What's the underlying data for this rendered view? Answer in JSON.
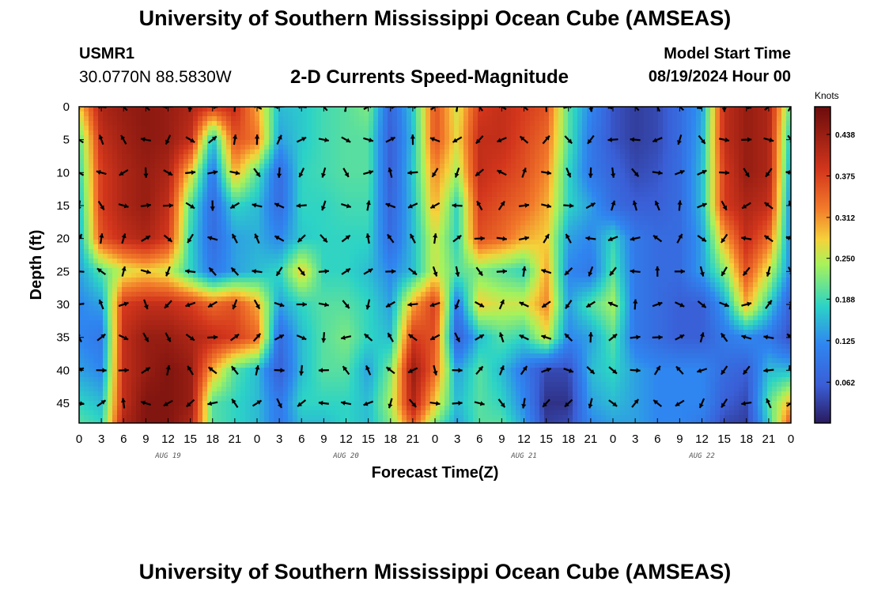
{
  "header": {
    "title": "University of Southern Mississippi Ocean Cube (AMSEAS)",
    "station_id": "USMR1",
    "coords": "30.0770N  88.5830W",
    "plot_title": "2-D Currents Speed-Magnitude",
    "model_start_label": "Model Start Time",
    "model_start_value": "08/19/2024 Hour 00"
  },
  "footer": {
    "title": "University of Southern Mississippi Ocean Cube (AMSEAS)"
  },
  "chart_data": {
    "type": "heatmap",
    "title": "2-D Currents Speed-Magnitude",
    "xlabel": "Forecast Time(Z)",
    "ylabel": "Depth (ft)",
    "xlim": [
      0,
      96
    ],
    "ylim": [
      0,
      48
    ],
    "x_ticks": [
      0,
      3,
      6,
      9,
      12,
      15,
      18,
      21,
      24,
      27,
      30,
      33,
      36,
      39,
      42,
      45,
      48,
      51,
      54,
      57,
      60,
      63,
      66,
      69,
      72,
      75,
      78,
      81,
      84,
      87,
      90,
      93,
      96
    ],
    "x_tick_labels": [
      "0",
      "3",
      "6",
      "9",
      "12",
      "15",
      "18",
      "21",
      "0",
      "3",
      "6",
      "9",
      "12",
      "15",
      "18",
      "21",
      "0",
      "3",
      "6",
      "9",
      "12",
      "15",
      "18",
      "21",
      "0",
      "3",
      "6",
      "9",
      "12",
      "15",
      "18",
      "21",
      "0"
    ],
    "day_labels": [
      {
        "x": 12,
        "text": "AUG 19"
      },
      {
        "x": 36,
        "text": "AUG 20"
      },
      {
        "x": 60,
        "text": "AUG 21"
      },
      {
        "x": 84,
        "text": "AUG 22"
      }
    ],
    "y_ticks": [
      0,
      5,
      10,
      15,
      20,
      25,
      30,
      35,
      40,
      45
    ],
    "y_tick_labels": [
      "0",
      "5",
      "10",
      "15",
      "20",
      "25",
      "30",
      "35",
      "40",
      "45"
    ],
    "colorbar": {
      "unit": "Knots",
      "min": 0.0,
      "max": 0.48,
      "ticks": [
        0.062,
        0.125,
        0.188,
        0.25,
        0.312,
        0.375,
        0.438
      ],
      "tick_labels": [
        "0.062",
        "0.125",
        "0.188",
        "0.250",
        "0.312",
        "0.375",
        "0.438"
      ]
    },
    "field": {
      "units": "knots",
      "columns_hours": [
        0,
        3,
        6,
        9,
        12,
        15,
        18,
        21,
        24,
        27,
        30,
        33,
        36,
        39,
        42,
        45,
        48,
        51,
        54,
        57,
        60,
        63,
        66,
        69,
        72,
        75,
        78,
        81,
        84,
        87,
        90,
        93,
        96
      ],
      "rows_depth_ft": [
        0,
        5,
        10,
        15,
        20,
        25,
        30,
        35,
        40,
        45,
        48
      ],
      "speed": [
        [
          0.28,
          0.42,
          0.44,
          0.45,
          0.44,
          0.42,
          0.38,
          0.4,
          0.3,
          0.16,
          0.17,
          0.19,
          0.2,
          0.22,
          0.07,
          0.17,
          0.36,
          0.26,
          0.38,
          0.4,
          0.38,
          0.36,
          0.2,
          0.12,
          0.05,
          0.03,
          0.04,
          0.08,
          0.14,
          0.4,
          0.44,
          0.42,
          0.2
        ],
        [
          0.2,
          0.4,
          0.43,
          0.45,
          0.44,
          0.4,
          0.16,
          0.36,
          0.33,
          0.14,
          0.17,
          0.19,
          0.2,
          0.2,
          0.06,
          0.16,
          0.36,
          0.27,
          0.4,
          0.4,
          0.37,
          0.34,
          0.2,
          0.1,
          0.05,
          0.03,
          0.04,
          0.08,
          0.15,
          0.4,
          0.44,
          0.42,
          0.16
        ],
        [
          0.18,
          0.38,
          0.42,
          0.44,
          0.42,
          0.28,
          0.1,
          0.3,
          0.2,
          0.08,
          0.18,
          0.19,
          0.2,
          0.2,
          0.06,
          0.17,
          0.32,
          0.24,
          0.4,
          0.38,
          0.36,
          0.32,
          0.18,
          0.1,
          0.07,
          0.04,
          0.05,
          0.08,
          0.16,
          0.38,
          0.44,
          0.42,
          0.14
        ],
        [
          0.16,
          0.38,
          0.42,
          0.44,
          0.4,
          0.2,
          0.08,
          0.18,
          0.16,
          0.08,
          0.18,
          0.18,
          0.19,
          0.19,
          0.07,
          0.16,
          0.3,
          0.18,
          0.38,
          0.36,
          0.34,
          0.3,
          0.18,
          0.14,
          0.08,
          0.06,
          0.06,
          0.08,
          0.16,
          0.38,
          0.42,
          0.4,
          0.12
        ],
        [
          0.15,
          0.36,
          0.4,
          0.42,
          0.38,
          0.18,
          0.08,
          0.14,
          0.15,
          0.12,
          0.17,
          0.18,
          0.18,
          0.18,
          0.08,
          0.16,
          0.26,
          0.18,
          0.36,
          0.34,
          0.3,
          0.28,
          0.14,
          0.12,
          0.18,
          0.1,
          0.08,
          0.08,
          0.14,
          0.3,
          0.4,
          0.34,
          0.12
        ],
        [
          0.14,
          0.2,
          0.26,
          0.28,
          0.26,
          0.18,
          0.1,
          0.14,
          0.16,
          0.18,
          0.28,
          0.18,
          0.18,
          0.16,
          0.12,
          0.16,
          0.26,
          0.2,
          0.22,
          0.2,
          0.18,
          0.3,
          0.12,
          0.1,
          0.2,
          0.1,
          0.08,
          0.08,
          0.14,
          0.22,
          0.36,
          0.26,
          0.12
        ],
        [
          0.12,
          0.14,
          0.38,
          0.4,
          0.4,
          0.38,
          0.34,
          0.36,
          0.3,
          0.14,
          0.18,
          0.2,
          0.2,
          0.18,
          0.14,
          0.3,
          0.38,
          0.1,
          0.28,
          0.26,
          0.26,
          0.32,
          0.14,
          0.2,
          0.24,
          0.1,
          0.08,
          0.06,
          0.06,
          0.14,
          0.3,
          0.18,
          0.06
        ],
        [
          0.12,
          0.1,
          0.4,
          0.44,
          0.44,
          0.42,
          0.4,
          0.38,
          0.34,
          0.08,
          0.16,
          0.2,
          0.22,
          0.18,
          0.16,
          0.38,
          0.36,
          0.06,
          0.16,
          0.2,
          0.18,
          0.26,
          0.12,
          0.14,
          0.2,
          0.1,
          0.08,
          0.06,
          0.06,
          0.1,
          0.12,
          0.1,
          0.04
        ],
        [
          0.14,
          0.12,
          0.4,
          0.44,
          0.46,
          0.44,
          0.3,
          0.2,
          0.16,
          0.06,
          0.16,
          0.2,
          0.2,
          0.14,
          0.22,
          0.44,
          0.34,
          0.14,
          0.2,
          0.16,
          0.1,
          0.04,
          0.04,
          0.16,
          0.18,
          0.14,
          0.12,
          0.12,
          0.12,
          0.08,
          0.06,
          0.16,
          0.16
        ],
        [
          0.18,
          0.16,
          0.4,
          0.46,
          0.46,
          0.44,
          0.2,
          0.18,
          0.16,
          0.1,
          0.18,
          0.18,
          0.18,
          0.16,
          0.24,
          0.42,
          0.28,
          0.16,
          0.2,
          0.18,
          0.12,
          0.02,
          0.02,
          0.14,
          0.16,
          0.14,
          0.12,
          0.12,
          0.12,
          0.06,
          0.04,
          0.2,
          0.3
        ],
        [
          0.2,
          0.18,
          0.42,
          0.46,
          0.46,
          0.42,
          0.2,
          0.18,
          0.16,
          0.1,
          0.16,
          0.16,
          0.18,
          0.16,
          0.22,
          0.36,
          0.22,
          0.14,
          0.2,
          0.2,
          0.14,
          0.03,
          0.04,
          0.12,
          0.14,
          0.14,
          0.12,
          0.12,
          0.1,
          0.04,
          0.03,
          0.18,
          0.36
        ]
      ]
    }
  }
}
